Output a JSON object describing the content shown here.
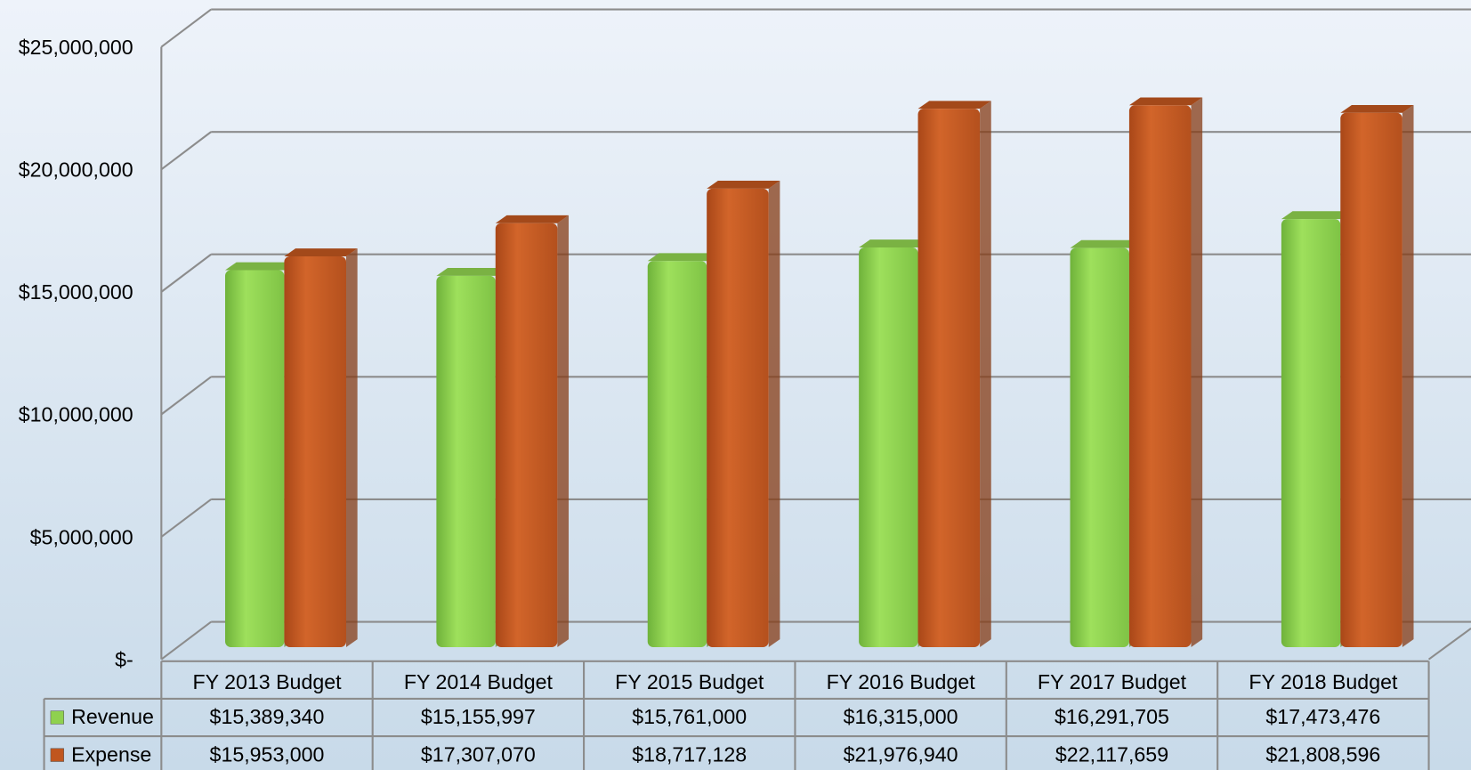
{
  "chart_data": {
    "type": "bar",
    "categories": [
      "FY 2013 Budget",
      "FY 2014 Budget",
      "FY 2015 Budget",
      "FY 2016 Budget",
      "FY 2017 Budget",
      "FY 2018 Budget"
    ],
    "series": [
      {
        "name": "Revenue",
        "color": "#8fd14f",
        "values": [
          15389340,
          15155997,
          15761000,
          16315000,
          16291705,
          17473476
        ],
        "value_labels": [
          "$15,389,340",
          "$15,155,997",
          "$15,761,000",
          "$16,315,000",
          "$16,291,705",
          "$17,473,476"
        ]
      },
      {
        "name": "Expense",
        "color": "#c0561f",
        "values": [
          15953000,
          17307070,
          18717128,
          21976940,
          22117659,
          21808596
        ],
        "value_labels": [
          "$15,953,000",
          "$17,307,070",
          "$18,717,128",
          "$21,976,940",
          "$22,117,659",
          "$21,808,596"
        ]
      }
    ],
    "ylim": [
      0,
      25000000
    ],
    "yticks": [
      {
        "value": 0,
        "label": "$-"
      },
      {
        "value": 5000000,
        "label": "$5,000,000"
      },
      {
        "value": 10000000,
        "label": "$10,000,000"
      },
      {
        "value": 15000000,
        "label": "$15,000,000"
      },
      {
        "value": 20000000,
        "label": "$20,000,000"
      },
      {
        "value": 25000000,
        "label": "$25,000,000"
      }
    ],
    "grid": true
  }
}
